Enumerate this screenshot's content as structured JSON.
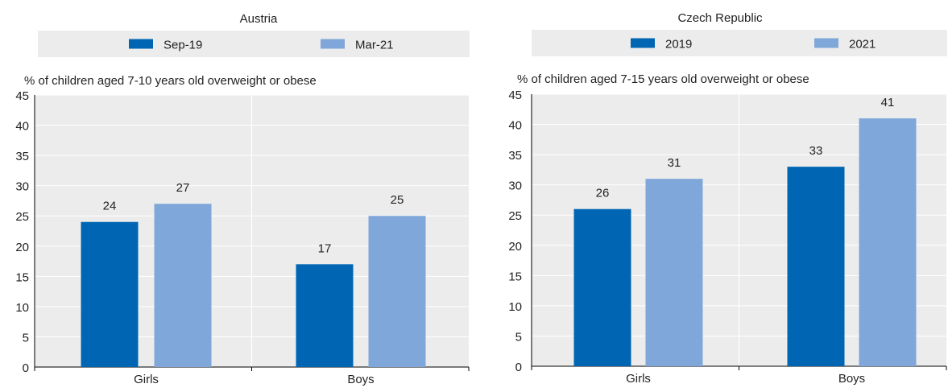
{
  "colors": {
    "series_dark": "#0066b3",
    "series_light": "#7fa7d9",
    "plot_bg": "#ececec",
    "legend_bg": "#ececec",
    "axis": "#000000",
    "gridline": "#ffffff",
    "text": "#222222"
  },
  "chart_data": [
    {
      "type": "bar",
      "title": "Austria",
      "ylabel": "% of children aged 7-10 years old overweight or obese",
      "categories": [
        "Girls",
        "Boys"
      ],
      "series": [
        {
          "name": "Sep-19",
          "values": [
            24,
            17
          ]
        },
        {
          "name": "Mar-21",
          "values": [
            27,
            25
          ]
        }
      ],
      "data_labels": [
        [
          "24",
          "17"
        ],
        [
          "27",
          "25"
        ]
      ],
      "ylim": [
        0,
        45
      ],
      "yticks": [
        0,
        5,
        10,
        15,
        20,
        25,
        30,
        35,
        40,
        45
      ],
      "grid": "horizontal",
      "legend_position": "top"
    },
    {
      "type": "bar",
      "title": "Czech Republic",
      "ylabel": "% of children aged 7-15 years old overweight or obese",
      "categories": [
        "Girls",
        "Boys"
      ],
      "series": [
        {
          "name": "2019",
          "values": [
            26,
            33
          ]
        },
        {
          "name": "2021",
          "values": [
            31,
            41
          ]
        }
      ],
      "data_labels": [
        [
          "26",
          "33"
        ],
        [
          "31",
          "41"
        ]
      ],
      "ylim": [
        0,
        45
      ],
      "yticks": [
        0,
        5,
        10,
        15,
        20,
        25,
        30,
        35,
        40,
        45
      ],
      "grid": "horizontal",
      "legend_position": "top"
    }
  ]
}
